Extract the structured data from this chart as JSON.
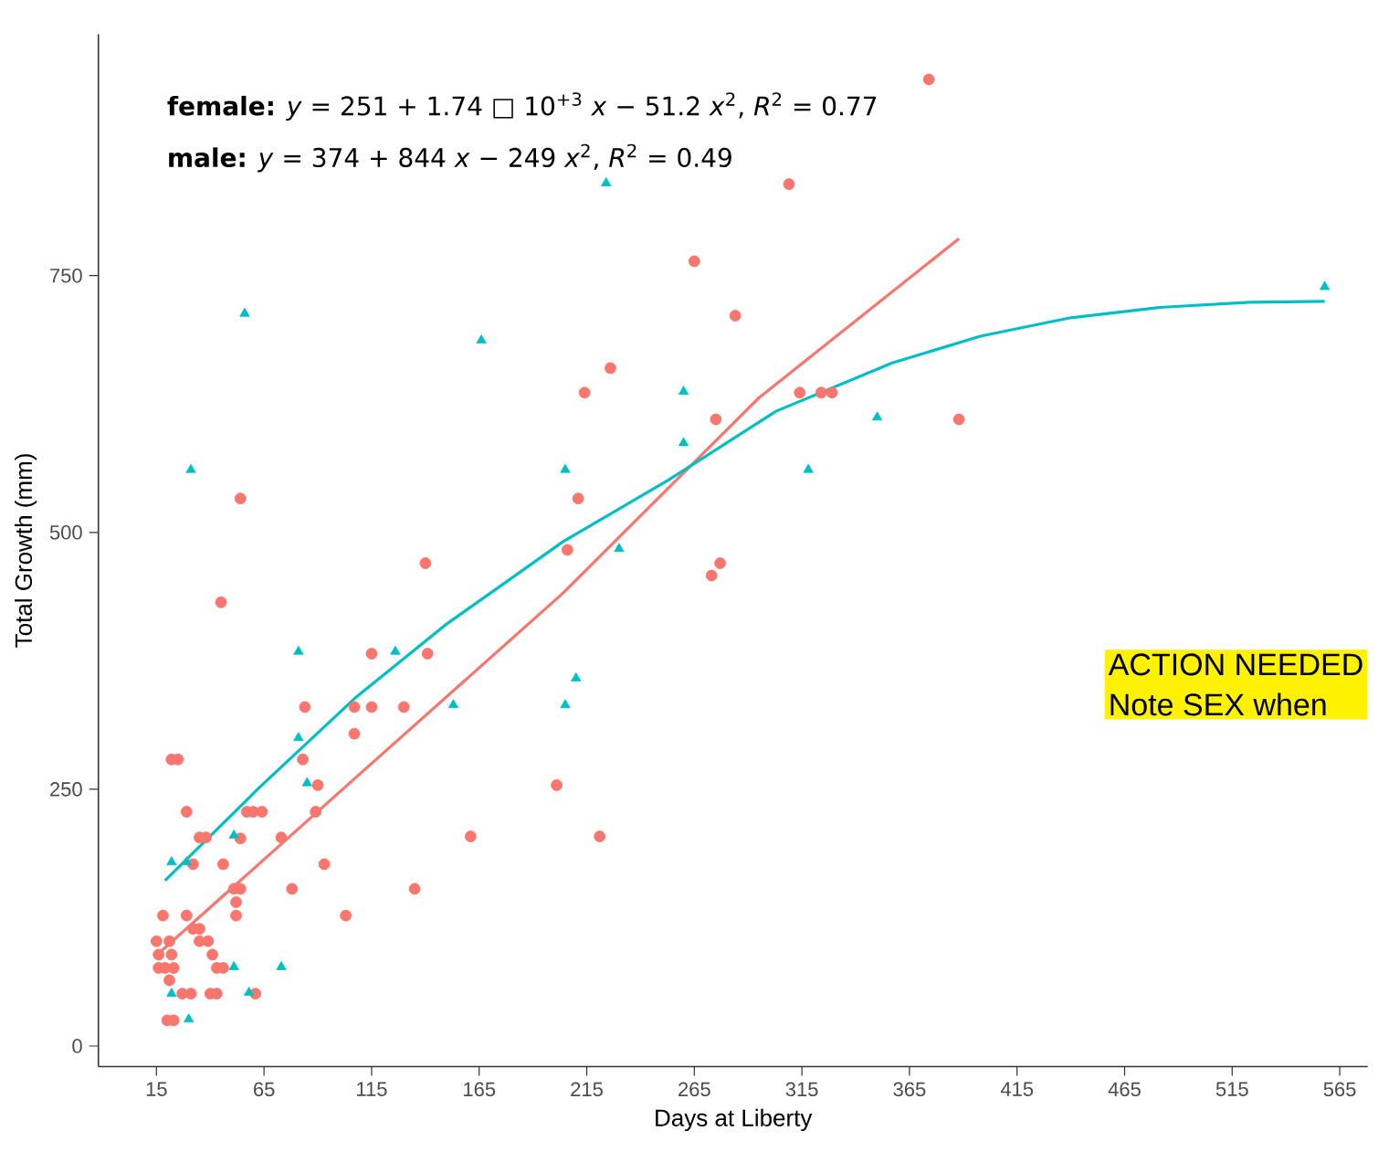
{
  "chart_data": {
    "type": "scatter",
    "xlabel": "Days at Liberty",
    "ylabel": "Total Growth (mm)",
    "xlim": [
      -12,
      578
    ],
    "ylim": [
      -20,
      985
    ],
    "xticks": [
      15,
      65,
      115,
      165,
      215,
      265,
      315,
      365,
      415,
      465,
      515,
      565
    ],
    "yticks": [
      0,
      250,
      500,
      750
    ],
    "annotations": [
      "**female:** *y* = 251 + 1.74 □ 10$^{+3}$ *x* − 51.2 *x*$^{2}$, *R*$^{2}$ = 0.77",
      "**male:** *y* = 374 + 844 *x* − 249 *x*$^{2}$, *R*$^{2}$ = 0.49",
      "ACTION NEEDED",
      "Note SEX when"
    ],
    "series": [
      {
        "type": "scatter",
        "marker": "circle",
        "color": "#f8766d",
        "x": [
          22,
          25,
          83,
          90,
          29,
          57,
          60,
          64,
          89,
          35,
          38,
          54,
          73,
          32,
          46,
          93,
          51,
          54,
          78,
          52,
          18,
          29,
          52,
          103,
          32,
          35,
          15,
          21,
          35,
          39,
          16,
          22,
          41,
          16,
          19,
          23,
          43,
          46,
          21,
          27,
          31,
          40,
          43,
          61,
          20,
          23,
          54,
          140,
          45,
          115,
          141,
          84,
          107,
          115,
          130,
          107,
          309,
          265,
          284,
          226,
          214,
          314,
          324,
          329,
          275,
          388,
          211,
          206,
          277,
          273,
          201,
          221,
          374,
          161,
          135
        ],
        "values": [
          279,
          279,
          279,
          254,
          228,
          228,
          228,
          228,
          228,
          203,
          203,
          202,
          203,
          177,
          177,
          177,
          153,
          153,
          153,
          140,
          127,
          127,
          127,
          127,
          114,
          114,
          102,
          102,
          102,
          102,
          89,
          89,
          89,
          76,
          76,
          76,
          76,
          76,
          64,
          51,
          51,
          51,
          51,
          51,
          25,
          25,
          533,
          470,
          432,
          382,
          382,
          330,
          330,
          330,
          330,
          304,
          839,
          764,
          711,
          660,
          636,
          636,
          636,
          636,
          610,
          610,
          533,
          483,
          470,
          458,
          254,
          204,
          941,
          204,
          153
        ]
      },
      {
        "type": "scatter",
        "marker": "triangle",
        "color": "#00bfc4",
        "x": [
          51,
          22,
          29,
          85,
          51,
          73,
          22,
          58,
          30,
          31,
          81,
          126,
          153,
          81,
          224,
          260,
          260,
          350,
          205,
          318,
          230,
          210,
          205,
          558,
          166,
          56
        ],
        "values": [
          205,
          179,
          179,
          256,
          77,
          77,
          51,
          52,
          26,
          561,
          384,
          384,
          332,
          300,
          840,
          637,
          587,
          612,
          561,
          561,
          484,
          358,
          332,
          739,
          687,
          713
        ]
      },
      {
        "type": "line",
        "marker": "none",
        "line_style": "solid",
        "color": "#f8766d",
        "x": [
          17,
          108,
          204,
          295,
          388
        ],
        "values": [
          92,
          262,
          441,
          631,
          786
        ]
      },
      {
        "type": "line",
        "marker": "none",
        "line_style": "solid",
        "color": "#00bfc4",
        "x": [
          19,
          63,
          108,
          150,
          204,
          253,
          303,
          357,
          398,
          440,
          481,
          523,
          558
        ],
        "values": [
          161,
          252,
          340,
          411,
          491,
          551,
          618,
          665,
          691,
          709,
          719,
          724,
          725
        ]
      }
    ]
  }
}
